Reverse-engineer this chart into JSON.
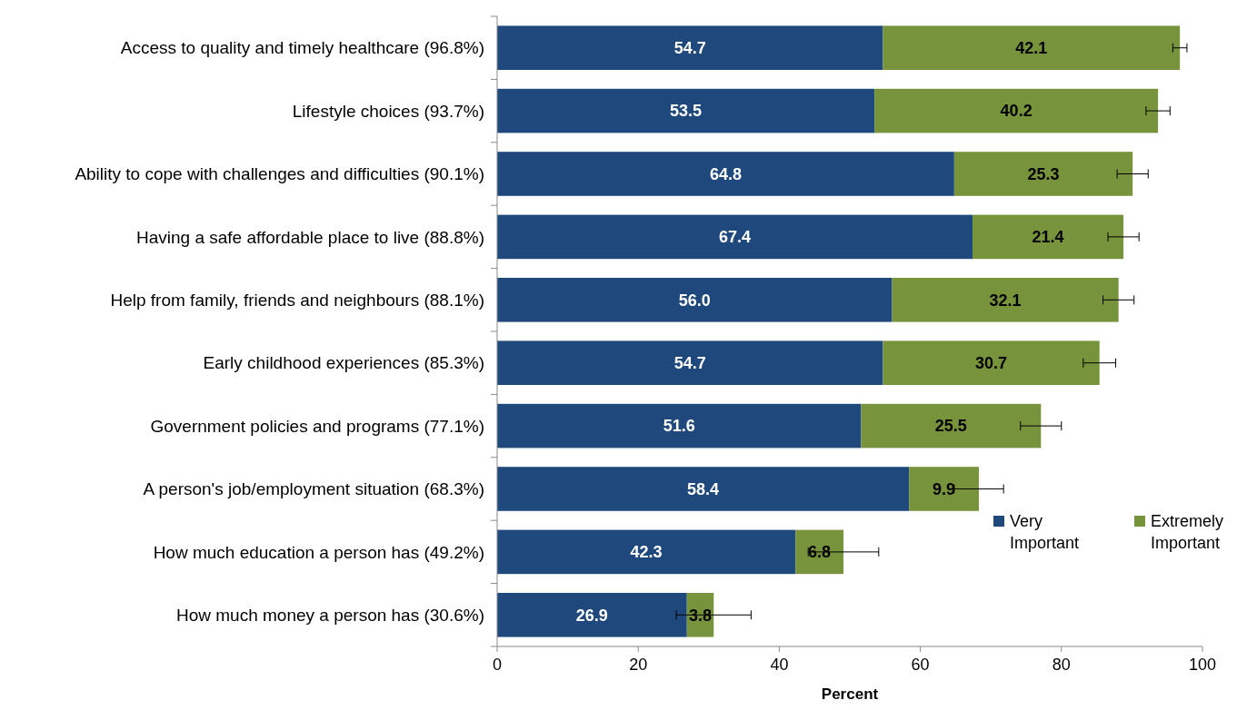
{
  "chart_data": {
    "type": "bar",
    "orientation": "horizontal",
    "stacked": true,
    "xlabel": "Percent",
    "categories": [
      "Access to quality and timely healthcare (96.8%)",
      "Lifestyle choices (93.7%)",
      "Ability to cope with challenges and difficulties (90.1%)",
      "Having a safe affordable place to live (88.8%)",
      "Help from family, friends and neighbours (88.1%)",
      "Early childhood experiences (85.3%)",
      "Government policies and programs (77.1%)",
      "A person's job/employment situation (68.3%)",
      "How much education a person has (49.2%)",
      "How much money a person has (30.6%)"
    ],
    "series": [
      {
        "name": "Very Important",
        "color": "#1f497d",
        "values": [
          54.7,
          53.5,
          64.8,
          67.4,
          56.0,
          54.7,
          51.6,
          58.4,
          42.3,
          26.9
        ],
        "value_labels": [
          "54.7",
          "53.5",
          "64.8",
          "67.4",
          "56.0",
          "54.7",
          "51.6",
          "58.4",
          "42.3",
          "26.9"
        ]
      },
      {
        "name": "Extremely Important",
        "color": "#77933c",
        "values": [
          42.1,
          40.2,
          25.3,
          21.4,
          32.1,
          30.7,
          25.5,
          9.9,
          6.8,
          3.8
        ],
        "errors": [
          1.0,
          1.7,
          2.2,
          2.2,
          2.2,
          2.3,
          2.9,
          3.5,
          5.0,
          5.3
        ],
        "value_labels": [
          "42.1",
          "40.2",
          "25.3",
          "21.4",
          "32.1",
          "30.7",
          "25.5",
          "9.9",
          "6.8",
          "3.8"
        ]
      }
    ],
    "xlim": [
      0,
      100
    ],
    "xticks": [
      0,
      20,
      40,
      60,
      80,
      100
    ],
    "legend": "bottom right",
    "grid": false
  }
}
